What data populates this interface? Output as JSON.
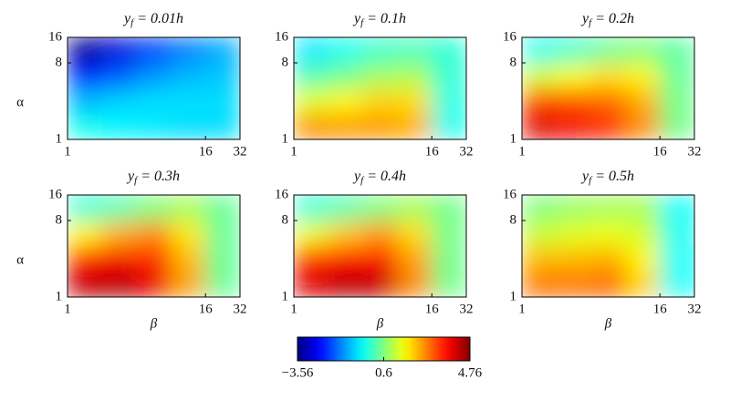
{
  "chart_data": [
    {
      "type": "heatmap",
      "title": "yf = 0.01h",
      "ylabel": "α",
      "xscale": "log",
      "yscale": "log",
      "colormap": "jet",
      "zlim": [
        -3.56,
        4.76
      ],
      "xlim": [
        1,
        32
      ],
      "ylim": [
        1,
        16
      ],
      "xticks": [
        1,
        16,
        32
      ],
      "yticks": [
        1,
        8,
        16
      ],
      "xbins": [
        1,
        2,
        4,
        8,
        16,
        32
      ],
      "ybins": [
        1,
        2,
        4,
        8,
        16
      ],
      "z": [
        [
          -0.3,
          -0.5,
          -0.6,
          -0.7,
          -0.7
        ],
        [
          -1.0,
          -0.8,
          -0.7,
          -0.7,
          -0.7
        ],
        [
          -2.3,
          -1.8,
          -1.3,
          -1.0,
          -0.9
        ],
        [
          -3.4,
          -2.8,
          -2.0,
          -1.5,
          -1.1
        ]
      ]
    },
    {
      "type": "heatmap",
      "title": "yf = 0.1h",
      "xscale": "log",
      "yscale": "log",
      "colormap": "jet",
      "zlim": [
        -3.56,
        4.76
      ],
      "xlim": [
        1,
        32
      ],
      "ylim": [
        1,
        16
      ],
      "xticks": [
        1,
        16,
        32
      ],
      "yticks": [
        1,
        8,
        16
      ],
      "xbins": [
        1,
        2,
        4,
        8,
        16,
        32
      ],
      "ybins": [
        1,
        2,
        4,
        8,
        16
      ],
      "z": [
        [
          2.6,
          2.5,
          2.5,
          2.3,
          -0.3
        ],
        [
          1.4,
          1.7,
          2.0,
          1.9,
          -0.2
        ],
        [
          0.2,
          0.5,
          0.9,
          1.0,
          -0.1
        ],
        [
          -0.6,
          -0.3,
          0,
          0.1,
          -0.1
        ]
      ]
    },
    {
      "type": "heatmap",
      "title": "yf = 0.2h",
      "xscale": "log",
      "yscale": "log",
      "colormap": "jet",
      "zlim": [
        -3.56,
        4.76
      ],
      "xlim": [
        1,
        32
      ],
      "ylim": [
        1,
        16
      ],
      "xticks": [
        1,
        16,
        32
      ],
      "yticks": [
        1,
        8,
        16
      ],
      "xbins": [
        1,
        2,
        4,
        8,
        16,
        32
      ],
      "ybins": [
        1,
        2,
        4,
        8,
        16
      ],
      "z": [
        [
          4.0,
          3.8,
          3.4,
          2.6,
          0.5
        ],
        [
          3.2,
          3.1,
          2.9,
          2.3,
          0.5
        ],
        [
          1.3,
          1.6,
          1.9,
          1.7,
          0.4
        ],
        [
          -0.3,
          0,
          0.4,
          0.6,
          0.3
        ]
      ]
    },
    {
      "type": "heatmap",
      "title": "yf = 0.3h",
      "ylabel": "α",
      "xlabel": "β",
      "xscale": "log",
      "yscale": "log",
      "colormap": "jet",
      "zlim": [
        -3.56,
        4.76
      ],
      "xlim": [
        1,
        32
      ],
      "ylim": [
        1,
        16
      ],
      "xticks": [
        1,
        16,
        32
      ],
      "yticks": [
        1,
        8,
        16
      ],
      "xbins": [
        1,
        2,
        4,
        8,
        16,
        32
      ],
      "ybins": [
        1,
        2,
        4,
        8,
        16
      ],
      "z": [
        [
          4.2,
          4.3,
          3.9,
          2.4,
          0.4
        ],
        [
          3.6,
          3.8,
          3.4,
          2.2,
          0.4
        ],
        [
          1.7,
          2.3,
          2.6,
          1.8,
          0.4
        ],
        [
          -0.1,
          0.2,
          0.6,
          0.9,
          0.4
        ]
      ]
    },
    {
      "type": "heatmap",
      "title": "yf = 0.4h",
      "xlabel": "β",
      "xscale": "log",
      "yscale": "log",
      "colormap": "jet",
      "zlim": [
        -3.56,
        4.76
      ],
      "xlim": [
        1,
        32
      ],
      "ylim": [
        1,
        16
      ],
      "xticks": [
        1,
        16,
        32
      ],
      "yticks": [
        1,
        8,
        16
      ],
      "xbins": [
        1,
        2,
        4,
        8,
        16,
        32
      ],
      "ybins": [
        1,
        2,
        4,
        8,
        16
      ],
      "z": [
        [
          4.0,
          4.3,
          4.2,
          2.6,
          0.5
        ],
        [
          3.4,
          3.7,
          3.6,
          2.4,
          0.5
        ],
        [
          1.5,
          2.1,
          2.5,
          1.9,
          0.5
        ],
        [
          -0.1,
          0.2,
          0.6,
          0.9,
          0.5
        ]
      ]
    },
    {
      "type": "heatmap",
      "title": "yf = 0.5h",
      "xlabel": "β",
      "xscale": "log",
      "yscale": "log",
      "colormap": "jet",
      "zlim": [
        -3.56,
        4.76
      ],
      "xlim": [
        1,
        32
      ],
      "ylim": [
        1,
        16
      ],
      "xticks": [
        1,
        16,
        32
      ],
      "yticks": [
        1,
        8,
        16
      ],
      "xbins": [
        1,
        2,
        4,
        8,
        16,
        32
      ],
      "ybins": [
        1,
        2,
        4,
        8,
        16
      ],
      "z": [
        [
          2.8,
          2.8,
          2.9,
          2.0,
          -0.4
        ],
        [
          2.2,
          2.2,
          2.3,
          1.7,
          -0.4
        ],
        [
          1.2,
          1.4,
          1.5,
          1.3,
          -0.3
        ],
        [
          0.6,
          0.8,
          0.9,
          0.9,
          -0.4
        ]
      ]
    },
    {
      "type": "colorbar",
      "colormap": "jet",
      "zlim": [
        -3.56,
        4.76
      ],
      "ticks": [
        {
          "value": -3.56,
          "label": "−3.56"
        },
        0.6,
        4.76
      ]
    }
  ]
}
